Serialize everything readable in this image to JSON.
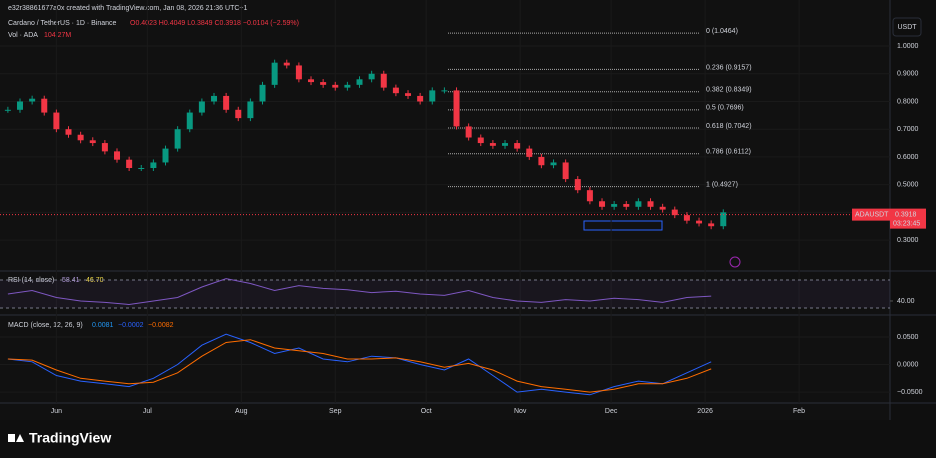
{
  "chart_data": {
    "type": "candlestick",
    "watermark": "e32r38861677a0x created with TradingView.com, Jan 08, 2026 21:36 UTC+1",
    "title": "Cardano / TetherUS · 1D · Binance",
    "ohlc_text": "O0.4023 H0.4049 L0.3849 C0.3918 −0.0104 (−2.59%)",
    "volume_label": "Vol · ADA",
    "volume_value": "104.27M",
    "currency": "USDT",
    "symbol": "ADAUSDT",
    "last_price": {
      "value": 0.3918,
      "label": "0.3918"
    },
    "countdown": "03:23:45",
    "brand": "TradingView",
    "xlim": [
      -2.6,
      291
    ],
    "xticks": [
      {
        "value": 16,
        "label": "Jun"
      },
      {
        "value": 46,
        "label": "Jul"
      },
      {
        "value": 77,
        "label": "Aug"
      },
      {
        "value": 108,
        "label": "Sep"
      },
      {
        "value": 138,
        "label": "Oct"
      },
      {
        "value": 169,
        "label": "Nov"
      },
      {
        "value": 199,
        "label": "Dec"
      },
      {
        "value": 230,
        "label": "2026"
      },
      {
        "value": 261,
        "label": "Feb"
      }
    ],
    "ylim": [
      0.192,
      1.112
    ],
    "yticks": [
      {
        "value": 0.3,
        "label": "0.3000"
      },
      {
        "value": 0.4,
        "label": "0.4000"
      },
      {
        "value": 0.5,
        "label": "0.5000"
      },
      {
        "value": 0.6,
        "label": "0.6000"
      },
      {
        "value": 0.7,
        "label": "0.7000"
      },
      {
        "value": 0.8,
        "label": "0.8000"
      },
      {
        "value": 0.9,
        "label": "0.9000"
      },
      {
        "value": 1.0,
        "label": "1.0000"
      }
    ],
    "x": [
      0,
      4,
      8,
      12,
      16,
      20,
      24,
      28,
      32,
      36,
      40,
      44,
      48,
      52,
      56,
      60,
      64,
      68,
      72,
      76,
      80,
      84,
      88,
      92,
      96,
      100,
      104,
      108,
      112,
      116,
      120,
      124,
      128,
      132,
      136,
      140,
      144,
      148,
      152,
      156,
      160,
      164,
      168,
      172,
      176,
      180,
      184,
      188,
      192,
      196,
      200,
      204,
      208,
      212,
      216,
      220,
      224,
      228,
      232,
      236
    ],
    "values": [
      0.77,
      0.8,
      0.81,
      0.76,
      0.7,
      0.68,
      0.66,
      0.65,
      0.62,
      0.59,
      0.56,
      0.56,
      0.58,
      0.63,
      0.7,
      0.76,
      0.8,
      0.82,
      0.77,
      0.74,
      0.8,
      0.86,
      0.94,
      0.93,
      0.88,
      0.87,
      0.86,
      0.85,
      0.86,
      0.88,
      0.9,
      0.85,
      0.83,
      0.82,
      0.8,
      0.84,
      0.84,
      0.71,
      0.67,
      0.65,
      0.64,
      0.65,
      0.63,
      0.6,
      0.57,
      0.58,
      0.52,
      0.48,
      0.44,
      0.42,
      0.43,
      0.42,
      0.44,
      0.42,
      0.41,
      0.39,
      0.37,
      0.36,
      0.35,
      0.4
    ],
    "fib_levels": [
      {
        "value": 1.0464,
        "label": "0 (1.0464)"
      },
      {
        "value": 0.9157,
        "label": "0.236 (0.9157)"
      },
      {
        "value": 0.8349,
        "label": "0.382 (0.8349)"
      },
      {
        "value": 0.7696,
        "label": "0.5 (0.7696)"
      },
      {
        "value": 0.7042,
        "label": "0.618 (0.7042)"
      },
      {
        "value": 0.6112,
        "label": "0.786 (0.6112)"
      },
      {
        "value": 0.4927,
        "label": "1 (0.4927)"
      }
    ],
    "rsi": {
      "title": "RSI (14, close)",
      "value_a": "58.41",
      "value_b": "46.70",
      "ylim": [
        21.4,
        81.4
      ],
      "yticks": [
        {
          "value": 40,
          "label": "40.00"
        }
      ],
      "bands": [
        70,
        30
      ],
      "x": [
        0,
        8,
        16,
        24,
        32,
        40,
        48,
        56,
        64,
        72,
        80,
        88,
        96,
        104,
        112,
        120,
        128,
        136,
        144,
        152,
        160,
        168,
        176,
        184,
        192,
        200,
        208,
        216,
        224,
        232
      ],
      "values": [
        50,
        55,
        45,
        40,
        38,
        35,
        40,
        45,
        60,
        72,
        65,
        55,
        62,
        58,
        56,
        52,
        54,
        50,
        48,
        55,
        45,
        40,
        38,
        42,
        40,
        44,
        42,
        38,
        45,
        47
      ]
    },
    "macd": {
      "title": "MACD (close, 12, 26, 9)",
      "value_a": "0.0081",
      "value_b": "−0.0002",
      "value_c": "−0.0082",
      "ylim": [
        -0.068,
        0.088
      ],
      "yticks": [
        {
          "value": 0.05,
          "label": "0.0500"
        },
        {
          "value": 0,
          "label": "0.0000"
        },
        {
          "value": -0.05,
          "label": "−0.0500"
        }
      ],
      "x": [
        0,
        8,
        16,
        24,
        32,
        40,
        48,
        56,
        64,
        72,
        80,
        88,
        96,
        104,
        112,
        120,
        128,
        136,
        144,
        152,
        160,
        168,
        176,
        184,
        192,
        200,
        208,
        216,
        224,
        232
      ],
      "series": [
        {
          "color": "#2962ff",
          "values": [
            0.01,
            0.005,
            -0.02,
            -0.03,
            -0.035,
            -0.04,
            -0.025,
            0.0,
            0.035,
            0.055,
            0.04,
            0.02,
            0.03,
            0.01,
            0.005,
            0.015,
            0.012,
            0.0,
            -0.01,
            0.01,
            -0.02,
            -0.05,
            -0.045,
            -0.05,
            -0.055,
            -0.04,
            -0.03,
            -0.035,
            -0.015,
            0.005
          ]
        },
        {
          "color": "#ff6d00",
          "values": [
            0.01,
            0.008,
            -0.01,
            -0.025,
            -0.03,
            -0.035,
            -0.032,
            -0.015,
            0.015,
            0.04,
            0.045,
            0.03,
            0.025,
            0.02,
            0.01,
            0.01,
            0.012,
            0.005,
            -0.005,
            0.002,
            -0.01,
            -0.03,
            -0.04,
            -0.045,
            -0.05,
            -0.045,
            -0.035,
            -0.035,
            -0.025,
            -0.008
          ]
        }
      ]
    }
  }
}
